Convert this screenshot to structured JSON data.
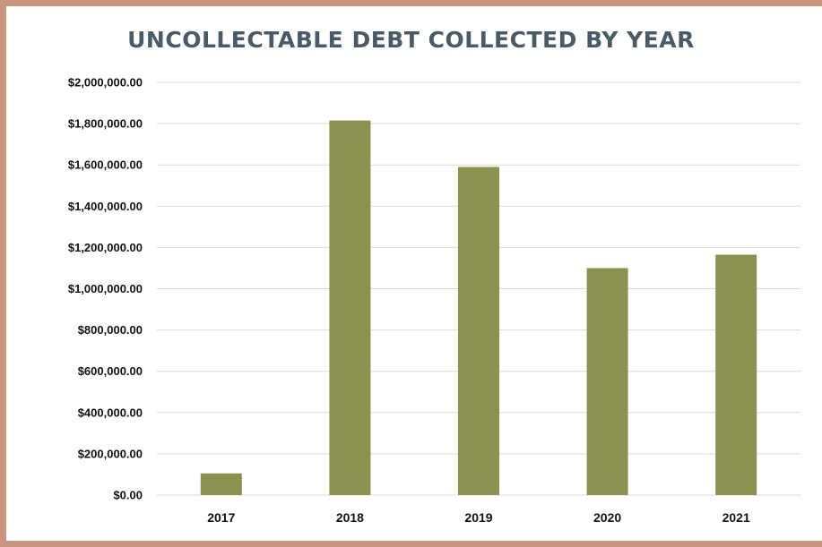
{
  "chart_data": {
    "type": "bar",
    "title": "UNCOLLECTABLE DEBT COLLECTED BY YEAR",
    "categories": [
      "2017",
      "2018",
      "2019",
      "2020",
      "2021"
    ],
    "values": [
      105000,
      1815000,
      1590000,
      1100000,
      1165000
    ],
    "ylim": [
      0,
      2000000
    ],
    "ytick_values": [
      0,
      200000,
      400000,
      600000,
      800000,
      1000000,
      1200000,
      1400000,
      1600000,
      1800000,
      2000000
    ],
    "ytick_labels": [
      "$0.00",
      "$200,000.00",
      "$400,000.00",
      "$600,000.00",
      "$800,000.00",
      "$1,000,000.00",
      "$1,200,000.00",
      "$1,400,000.00",
      "$1,600,000.00",
      "$1,800,000.00",
      "$2,000,000.00"
    ],
    "grid": true,
    "legend": "none",
    "colors": {
      "bar": "#8b914f",
      "title": "#4a5b68",
      "grid": "#d9d9d9",
      "frame": "#c9957f"
    }
  }
}
